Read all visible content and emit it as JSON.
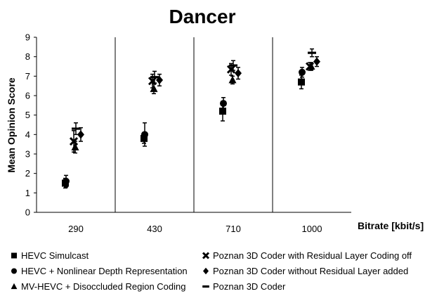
{
  "chart_data": {
    "type": "scatter",
    "title": "Dancer",
    "xlabel": "Bitrate  [kbit/s]",
    "ylabel": "Mean Opinion Score",
    "ylim": [
      0,
      9
    ],
    "yticks": [
      0,
      1,
      2,
      3,
      4,
      5,
      6,
      7,
      8,
      9
    ],
    "categories": [
      "290",
      "430",
      "710",
      "1000"
    ],
    "grid": false,
    "legend_position": "bottom",
    "series": [
      {
        "name": "HEVC Simulcast",
        "marker": "square",
        "values": [
          1.5,
          3.8,
          5.2,
          6.7
        ],
        "errors": [
          0.25,
          0.25,
          0.5,
          0.35
        ]
      },
      {
        "name": "HEVC + Nonlinear Depth Representation",
        "marker": "circle",
        "values": [
          1.6,
          4.0,
          5.6,
          7.2
        ],
        "errors": [
          0.3,
          0.6,
          0.3,
          0.25
        ]
      },
      {
        "name": "MV-HEVC + Disoccluded Region Coding",
        "marker": "triangle",
        "values": [
          3.35,
          6.35,
          6.8,
          7.5
        ],
        "errors": [
          0.3,
          0.25,
          0.2,
          0.2
        ]
      },
      {
        "name": "Poznan 3D Coder with Residual Layer Coding off",
        "marker": "x",
        "values": [
          3.65,
          6.75,
          7.35,
          7.5
        ],
        "errors": [
          0.55,
          0.35,
          0.3,
          0.2
        ]
      },
      {
        "name": "Poznan 3D Coder without Residual Layer added",
        "marker": "diamond",
        "values": [
          4.0,
          6.8,
          7.15,
          7.75
        ],
        "errors": [
          0.35,
          0.3,
          0.3,
          0.25
        ]
      },
      {
        "name": "Poznan 3D Coder",
        "marker": "dash",
        "values": [
          4.3,
          6.95,
          7.55,
          8.2
        ],
        "errors": [
          0.3,
          0.3,
          0.25,
          0.2
        ]
      }
    ],
    "colors": {
      "marker": "#000000",
      "axis": "#000000",
      "separator": "#000000"
    }
  }
}
